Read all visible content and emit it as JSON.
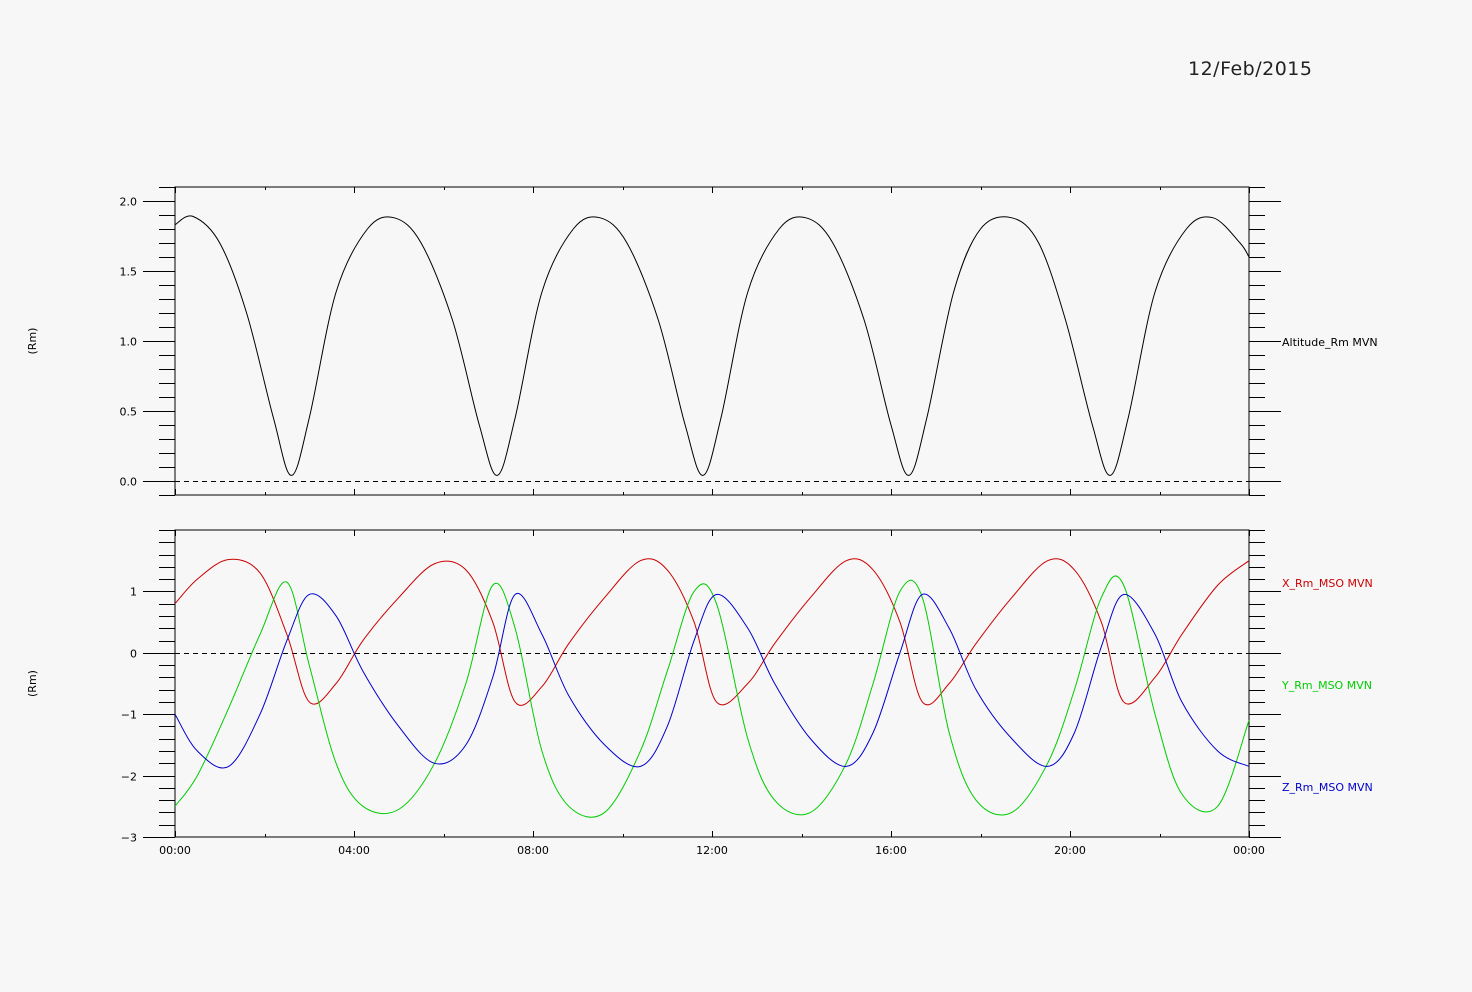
{
  "date_label": "12/Feb/2015",
  "chart_data": [
    {
      "type": "line",
      "title": "",
      "ylabel": "(Rm)",
      "ylim": [
        -0.1,
        2.1
      ],
      "yticks": [
        "0.0",
        "0.5",
        "1.0",
        "1.5",
        "2.0"
      ],
      "ytick_values": [
        0,
        0.5,
        1,
        1.5,
        2
      ],
      "xlim_hours": [
        0,
        24
      ],
      "x_hours": [
        0,
        0.4,
        1.0,
        1.6,
        2.2,
        2.6,
        3.0,
        3.6,
        4.3,
        4.9,
        5.5,
        6.2,
        6.8,
        7.2,
        7.6,
        8.2,
        8.9,
        9.5,
        10.1,
        10.8,
        11.4,
        11.8,
        12.2,
        12.8,
        13.5,
        14.1,
        14.7,
        15.4,
        16.0,
        16.4,
        16.8,
        17.4,
        18.0,
        18.7,
        19.3,
        19.9,
        20.5,
        20.9,
        21.3,
        21.9,
        22.6,
        23.2,
        23.8,
        24.0
      ],
      "series": [
        {
          "name": "Altitude_Rm MVN",
          "color": "#000000",
          "values": [
            1.83,
            1.89,
            1.7,
            1.2,
            0.45,
            0.04,
            0.45,
            1.35,
            1.8,
            1.88,
            1.7,
            1.15,
            0.4,
            0.04,
            0.45,
            1.35,
            1.8,
            1.88,
            1.7,
            1.15,
            0.4,
            0.04,
            0.45,
            1.35,
            1.8,
            1.88,
            1.7,
            1.15,
            0.4,
            0.04,
            0.45,
            1.35,
            1.8,
            1.88,
            1.7,
            1.15,
            0.4,
            0.04,
            0.45,
            1.35,
            1.8,
            1.88,
            1.7,
            1.6
          ]
        }
      ],
      "reference_line_y": 0
    },
    {
      "type": "line",
      "title": "",
      "ylabel": "(Rm)",
      "ylim": [
        -3,
        2
      ],
      "yticks": [
        "−3",
        "−2",
        "−1",
        "0",
        "1"
      ],
      "ytick_values": [
        -3,
        -2,
        -1,
        0,
        1
      ],
      "xlim_hours": [
        0,
        24
      ],
      "xticks": [
        "00:00",
        "04:00",
        "08:00",
        "12:00",
        "16:00",
        "20:00",
        "00:00"
      ],
      "xtick_hours": [
        0,
        4,
        8,
        12,
        16,
        20,
        24
      ],
      "x_hours": [
        0,
        0.5,
        1.2,
        1.9,
        2.5,
        3.0,
        3.6,
        4.2,
        5.0,
        5.8,
        6.5,
        7.1,
        7.6,
        8.2,
        8.8,
        9.6,
        10.4,
        11.0,
        11.6,
        12.1,
        12.8,
        13.4,
        14.2,
        15.0,
        15.6,
        16.2,
        16.7,
        17.3,
        17.9,
        18.7,
        19.5,
        20.1,
        20.7,
        21.2,
        21.9,
        22.5,
        23.3,
        24.0
      ],
      "series": [
        {
          "name": "X_Rm_MSO MVN",
          "color": "#cc0000",
          "values": [
            0.8,
            1.2,
            1.52,
            1.3,
            0.3,
            -0.8,
            -0.5,
            0.2,
            0.9,
            1.45,
            1.35,
            0.5,
            -0.8,
            -0.55,
            0.15,
            0.9,
            1.5,
            1.35,
            0.5,
            -0.8,
            -0.5,
            0.15,
            0.9,
            1.5,
            1.35,
            0.5,
            -0.8,
            -0.5,
            0.15,
            0.9,
            1.5,
            1.35,
            0.5,
            -0.8,
            -0.4,
            0.3,
            1.1,
            1.5
          ]
        },
        {
          "name": "Y_Rm_MSO MVN",
          "color": "#00cc00",
          "values": [
            -2.5,
            -2.0,
            -0.9,
            0.3,
            1.15,
            -0.2,
            -1.8,
            -2.5,
            -2.55,
            -1.8,
            -0.5,
            1.1,
            0.4,
            -1.6,
            -2.5,
            -2.6,
            -1.6,
            -0.3,
            1.0,
            0.8,
            -1.4,
            -2.4,
            -2.6,
            -1.8,
            -0.5,
            1.0,
            0.9,
            -1.3,
            -2.4,
            -2.6,
            -1.8,
            -0.6,
            0.9,
            1.1,
            -1.0,
            -2.3,
            -2.5,
            -1.1
          ]
        },
        {
          "name": "Z_Rm_MSO MVN",
          "color": "#0000cc",
          "values": [
            -1.0,
            -1.6,
            -1.85,
            -1.0,
            0.2,
            0.95,
            0.6,
            -0.3,
            -1.2,
            -1.8,
            -1.5,
            -0.4,
            0.95,
            0.3,
            -0.7,
            -1.5,
            -1.85,
            -1.2,
            0.2,
            0.95,
            0.4,
            -0.5,
            -1.4,
            -1.85,
            -1.3,
            0.0,
            0.95,
            0.4,
            -0.6,
            -1.4,
            -1.85,
            -1.3,
            0.1,
            0.95,
            0.3,
            -0.8,
            -1.6,
            -1.85
          ]
        }
      ],
      "reference_line_y": 0
    }
  ]
}
